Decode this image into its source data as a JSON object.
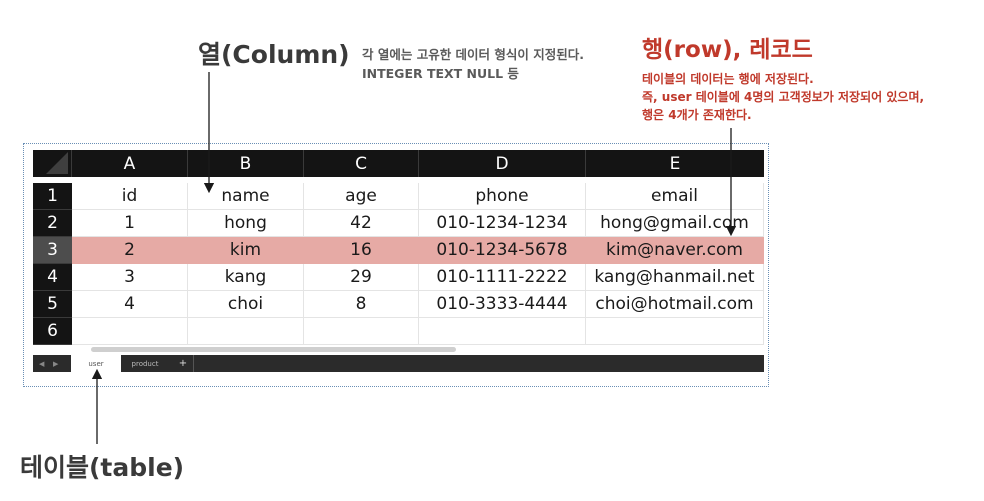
{
  "annotations": {
    "column_title": "열(Column)",
    "column_desc_1": "각 열에는 고유한 데이터 형식이 지정된다.",
    "column_desc_2": "INTEGER TEXT NULL 등",
    "row_title": "행(row), 레코드",
    "row_desc_1": "테이블의 데이터는 행에 저장된다.",
    "row_desc_2": "즉, user 테이블에 4명의 고객정보가 저장되어 있으며,",
    "row_desc_3": "행은 4개가 존재한다.",
    "table_title": "테이블(table)"
  },
  "colors": {
    "annotation_red": "#c0392b",
    "highlight_row": "#e6aaa5",
    "header_dark": "#141414"
  },
  "sheet": {
    "columns": [
      "A",
      "B",
      "C",
      "D",
      "E"
    ],
    "row_numbers": [
      "1",
      "2",
      "3",
      "4",
      "5",
      "6"
    ],
    "rows": [
      [
        "id",
        "name",
        "age",
        "phone",
        "email"
      ],
      [
        "1",
        "hong",
        "42",
        "010-1234-1234",
        "hong@gmail.com"
      ],
      [
        "2",
        "kim",
        "16",
        "010-1234-5678",
        "kim@naver.com"
      ],
      [
        "3",
        "kang",
        "29",
        "010-1111-2222",
        "kang@hanmail.net"
      ],
      [
        "4",
        "choi",
        "8",
        "010-3333-4444",
        "choi@hotmail.com"
      ],
      [
        "",
        "",
        "",
        "",
        ""
      ]
    ],
    "highlighted_row": "3",
    "tabs": [
      "user",
      "product"
    ],
    "add_tab": "+",
    "nav_prev": "◀",
    "nav_next": "▶"
  }
}
